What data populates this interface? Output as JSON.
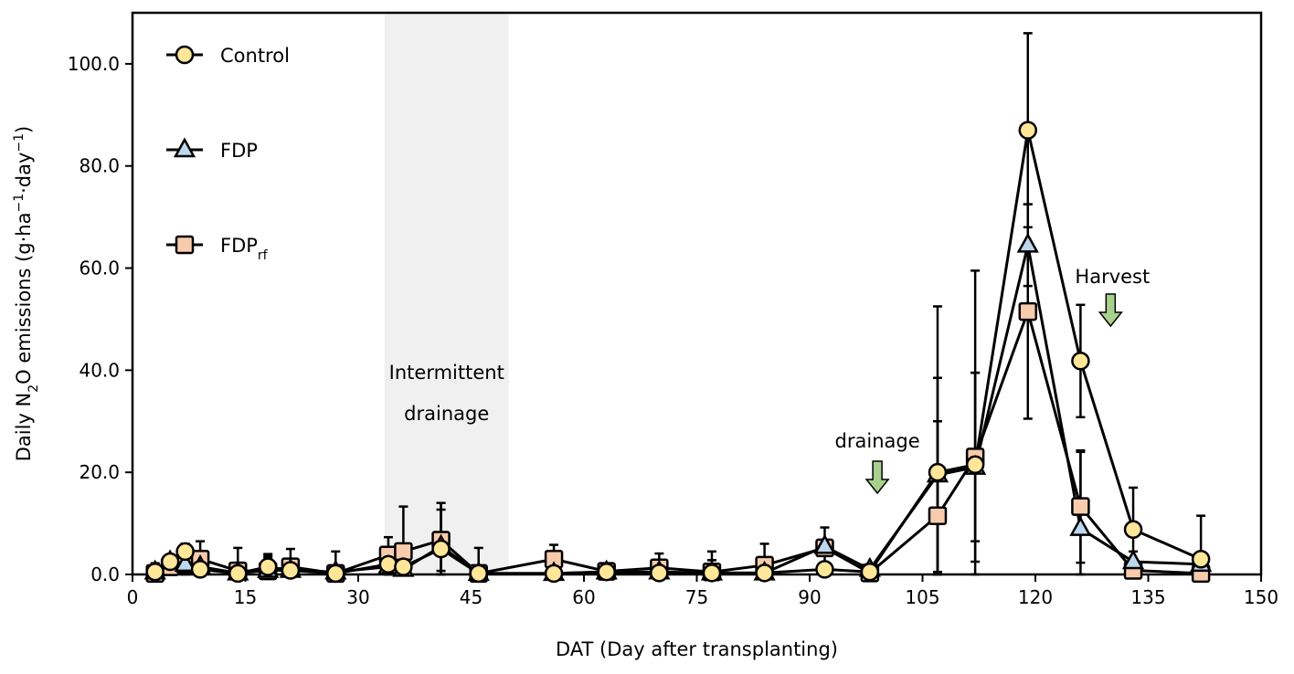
{
  "chart_data": {
    "type": "line",
    "xlabel": "DAT (Day after transplanting)",
    "ylabel_parts": [
      "Daily N",
      "2",
      "O emissions (g·ha",
      "−1",
      "·day",
      "−1",
      ")"
    ],
    "xlim": [
      0,
      150
    ],
    "ylim": [
      0,
      110
    ],
    "xticks": [
      0,
      15,
      30,
      45,
      60,
      75,
      90,
      105,
      120,
      135,
      150
    ],
    "yticks": [
      "0.0",
      "20.0",
      "40.0",
      "60.0",
      "80.0",
      "100.0"
    ],
    "grid": false,
    "legend_placement": "top-left",
    "x": [
      3,
      5,
      7,
      9,
      14,
      18,
      21,
      27,
      34,
      36,
      41,
      46,
      56,
      63,
      70,
      77,
      84,
      92,
      98,
      107,
      112,
      119,
      126,
      133,
      142
    ],
    "series": [
      {
        "name": "Control",
        "marker": "circle",
        "color": "#FFE699",
        "values": [
          0.5,
          2.5,
          4.5,
          1,
          0.2,
          1.5,
          0.8,
          0.2,
          2,
          1.5,
          5,
          0.2,
          0.2,
          0.5,
          0.3,
          0.3,
          0.3,
          1,
          0.5,
          20,
          21.5,
          87,
          41.8,
          8.8,
          3
        ],
        "errors": [
          1.5,
          1,
          1.5,
          1,
          2,
          2.5,
          1.5,
          0.5,
          2,
          2,
          9,
          0.5,
          0.5,
          0.5,
          1,
          2.5,
          1,
          1,
          1.5,
          32.5,
          38,
          19,
          11,
          8.2,
          8.5
        ]
      },
      {
        "name": "FDP",
        "marker": "triangle",
        "color": "#BDD7EE",
        "values": [
          0.5,
          2.5,
          2,
          1.5,
          0.3,
          0.8,
          0.8,
          0.5,
          1.5,
          1,
          5.5,
          0.2,
          0.2,
          0.5,
          0.5,
          0.3,
          0.3,
          5.5,
          1,
          19.5,
          21,
          64.5,
          9,
          2.5,
          2
        ],
        "errors": [
          1.5,
          1,
          1,
          1,
          2,
          2.5,
          1.5,
          4,
          2,
          2,
          8.5,
          1,
          1,
          0.5,
          1,
          2.5,
          1,
          1,
          1,
          19,
          18.5,
          8,
          15,
          2,
          2
        ]
      },
      {
        "name": "FDPrf",
        "name_main": "FDP",
        "name_sub": "rf",
        "marker": "square",
        "color": "#F8CBAD",
        "values": [
          0.2,
          1.5,
          2,
          3,
          0.7,
          0.7,
          1.5,
          0.2,
          3.8,
          4.5,
          6.7,
          0.2,
          3,
          0.6,
          1.3,
          0.5,
          1.8,
          5.2,
          0.3,
          11.5,
          23,
          51.5,
          13.3,
          0.8,
          0.2
        ],
        "errors": [
          2,
          1.5,
          4,
          3.5,
          4.5,
          3,
          3.5,
          0.5,
          3.5,
          8.8,
          6,
          5,
          2.8,
          0.5,
          2.8,
          4,
          4.2,
          4,
          1,
          18.5,
          16.5,
          21,
          11,
          0.8,
          0.5
        ]
      }
    ],
    "annotations": [
      {
        "text": "Intermittent",
        "text2": "drainage",
        "type": "shaded-region",
        "x_range": [
          33.5,
          50
        ],
        "color": "#F0F0F0"
      },
      {
        "text": "drainage",
        "type": "arrow",
        "x": 99,
        "color": "#A9D18E"
      },
      {
        "text": "Harvest",
        "type": "arrow",
        "x": 130,
        "color": "#A9D18E"
      }
    ]
  }
}
